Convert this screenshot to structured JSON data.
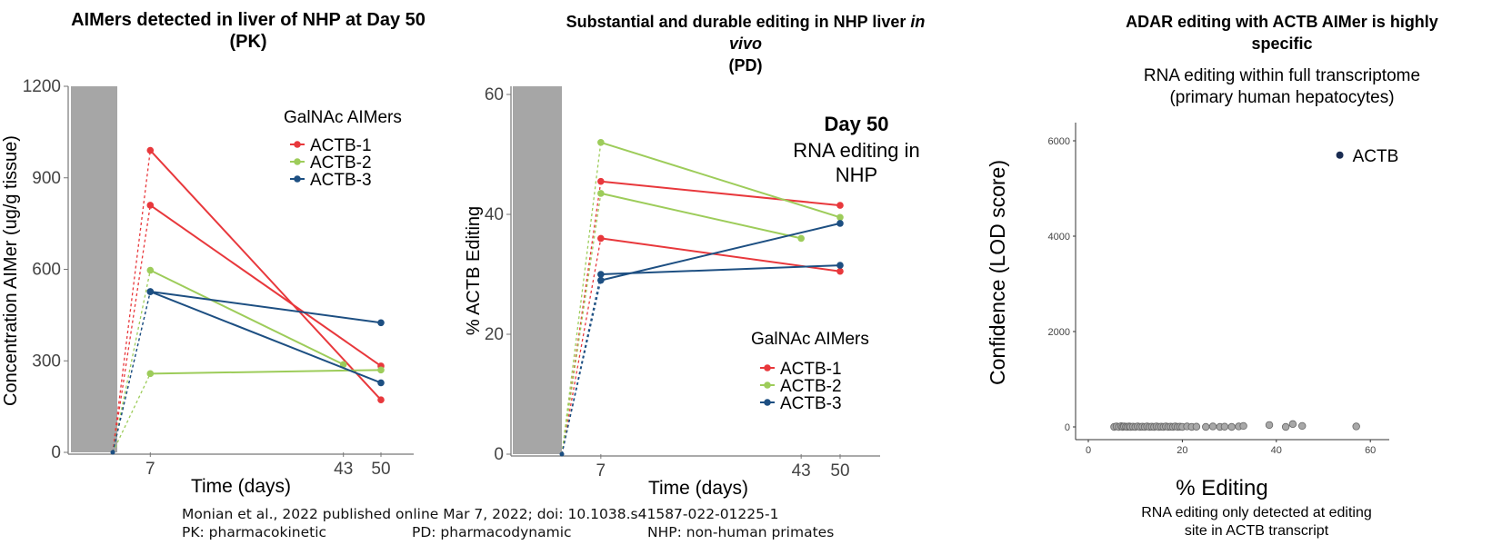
{
  "footnote": {
    "citation": "Monian et al., 2022 published online Mar 7, 2022; doi: 10.1038.s41587-022-01225-1",
    "pk": "PK: pharmacokinetic",
    "pd": "PD: pharmacodynamic",
    "nhp": "NHP: non-human primates"
  },
  "colors": {
    "actb1": "#e8383c",
    "actb2": "#9dcc5a",
    "actb3": "#1d4f82",
    "shade": "#a6a6a6",
    "point": "#a8a8a8",
    "actb_point": "#1a2c52"
  },
  "chart_data": [
    {
      "type": "line",
      "title_line1": "AIMers detected in liver of NHP at Day 50",
      "title_line2": "(PK)",
      "ylabel": "Concentration AIMer (ug/g tissue)",
      "xlabel": "Time (days)",
      "ylim": [
        0,
        1200
      ],
      "yticks": [
        "0",
        "300",
        "600",
        "900",
        "1200"
      ],
      "xticks": [
        "7",
        "43",
        "50"
      ],
      "legend_title": "GalNAc AIMers",
      "legend": [
        "ACTB-1",
        "ACTB-2",
        "ACTB-3"
      ],
      "series": [
        {
          "name": "ACTB-1",
          "points": [
            [
              7,
              990
            ],
            [
              50,
              172
            ]
          ]
        },
        {
          "name": "ACTB-1",
          "points": [
            [
              7,
              810
            ],
            [
              50,
              283
            ]
          ]
        },
        {
          "name": "ACTB-2",
          "points": [
            [
              7,
              597
            ],
            [
              43,
              288
            ]
          ]
        },
        {
          "name": "ACTB-2",
          "points": [
            [
              7,
              258
            ],
            [
              50,
              270
            ]
          ]
        },
        {
          "name": "ACTB-3",
          "points": [
            [
              7,
              527
            ],
            [
              50,
              425
            ]
          ]
        },
        {
          "name": "ACTB-3",
          "points": [
            [
              7,
              527
            ],
            [
              50,
              228
            ]
          ]
        }
      ]
    },
    {
      "type": "line",
      "title_line1_pre": "Substantial and durable editing in NHP liver ",
      "title_line1_ital": "in",
      "title_line2_ital": "vivo",
      "title_line3": "(PD)",
      "annotation_bold": "Day 50",
      "annotation_line1": "RNA editing in",
      "annotation_line2": "NHP",
      "ylabel": "% ACTB Editing",
      "xlabel": "Time (days)",
      "ylim": [
        0,
        60
      ],
      "yticks": [
        "0",
        "20",
        "40",
        "60"
      ],
      "xticks": [
        "7",
        "43",
        "50"
      ],
      "legend_title": "GalNAc AIMers",
      "legend": [
        "ACTB-1",
        "ACTB-2",
        "ACTB-3"
      ],
      "series": [
        {
          "name": "ACTB-1",
          "points": [
            [
              7,
              45.5
            ],
            [
              50,
              41.5
            ]
          ]
        },
        {
          "name": "ACTB-1",
          "points": [
            [
              7,
              36
            ],
            [
              50,
              30.5
            ]
          ]
        },
        {
          "name": "ACTB-2",
          "points": [
            [
              7,
              52
            ],
            [
              50,
              39.5
            ]
          ]
        },
        {
          "name": "ACTB-2",
          "points": [
            [
              7,
              43.5
            ],
            [
              43,
              36
            ]
          ]
        },
        {
          "name": "ACTB-3",
          "points": [
            [
              7,
              29
            ],
            [
              50,
              38.5
            ]
          ]
        },
        {
          "name": "ACTB-3",
          "points": [
            [
              7,
              30
            ],
            [
              50,
              31.5
            ]
          ]
        }
      ]
    },
    {
      "type": "scatter",
      "title_line1": "ADAR editing with ACTB AIMer is highly",
      "title_line2": "specific",
      "subtitle_line1": "RNA editing within full transcriptome",
      "subtitle_line2": "(primary human hepatocytes)",
      "ylabel": "Confidence (LOD score)",
      "xlabel": "% Editing",
      "caption_line1": "RNA editing only detected at editing",
      "caption_line2": "site in ACTB transcript",
      "xlim": [
        -3,
        62
      ],
      "ylim": [
        -300,
        6300
      ],
      "xticks": [
        "0",
        "20",
        "40",
        "60"
      ],
      "yticks": [
        "0",
        "2000",
        "4000",
        "6000"
      ],
      "legend": [
        "ACTB"
      ],
      "highlight": {
        "name": "ACTB",
        "x": 53.5,
        "y": 5700
      },
      "x": [
        5.5,
        6,
        6.5,
        7,
        7.3,
        7.6,
        8,
        8.3,
        8.7,
        9,
        9.5,
        10,
        10.5,
        11,
        11.5,
        12,
        12.5,
        13,
        13.5,
        14,
        14.5,
        15,
        15.5,
        16,
        16.5,
        17,
        17.5,
        18,
        18.5,
        19,
        19.5,
        20,
        21,
        22,
        23,
        25,
        26.5,
        28,
        29,
        30.5,
        32,
        33,
        38.5,
        42,
        43.5,
        45.5,
        57
      ],
      "y": [
        0,
        10,
        0,
        15,
        0,
        10,
        5,
        0,
        10,
        0,
        5,
        0,
        10,
        0,
        5,
        0,
        10,
        0,
        5,
        0,
        10,
        0,
        5,
        0,
        10,
        0,
        5,
        0,
        10,
        0,
        5,
        0,
        10,
        0,
        5,
        0,
        10,
        0,
        5,
        0,
        10,
        20,
        40,
        0,
        60,
        20,
        10
      ]
    }
  ]
}
